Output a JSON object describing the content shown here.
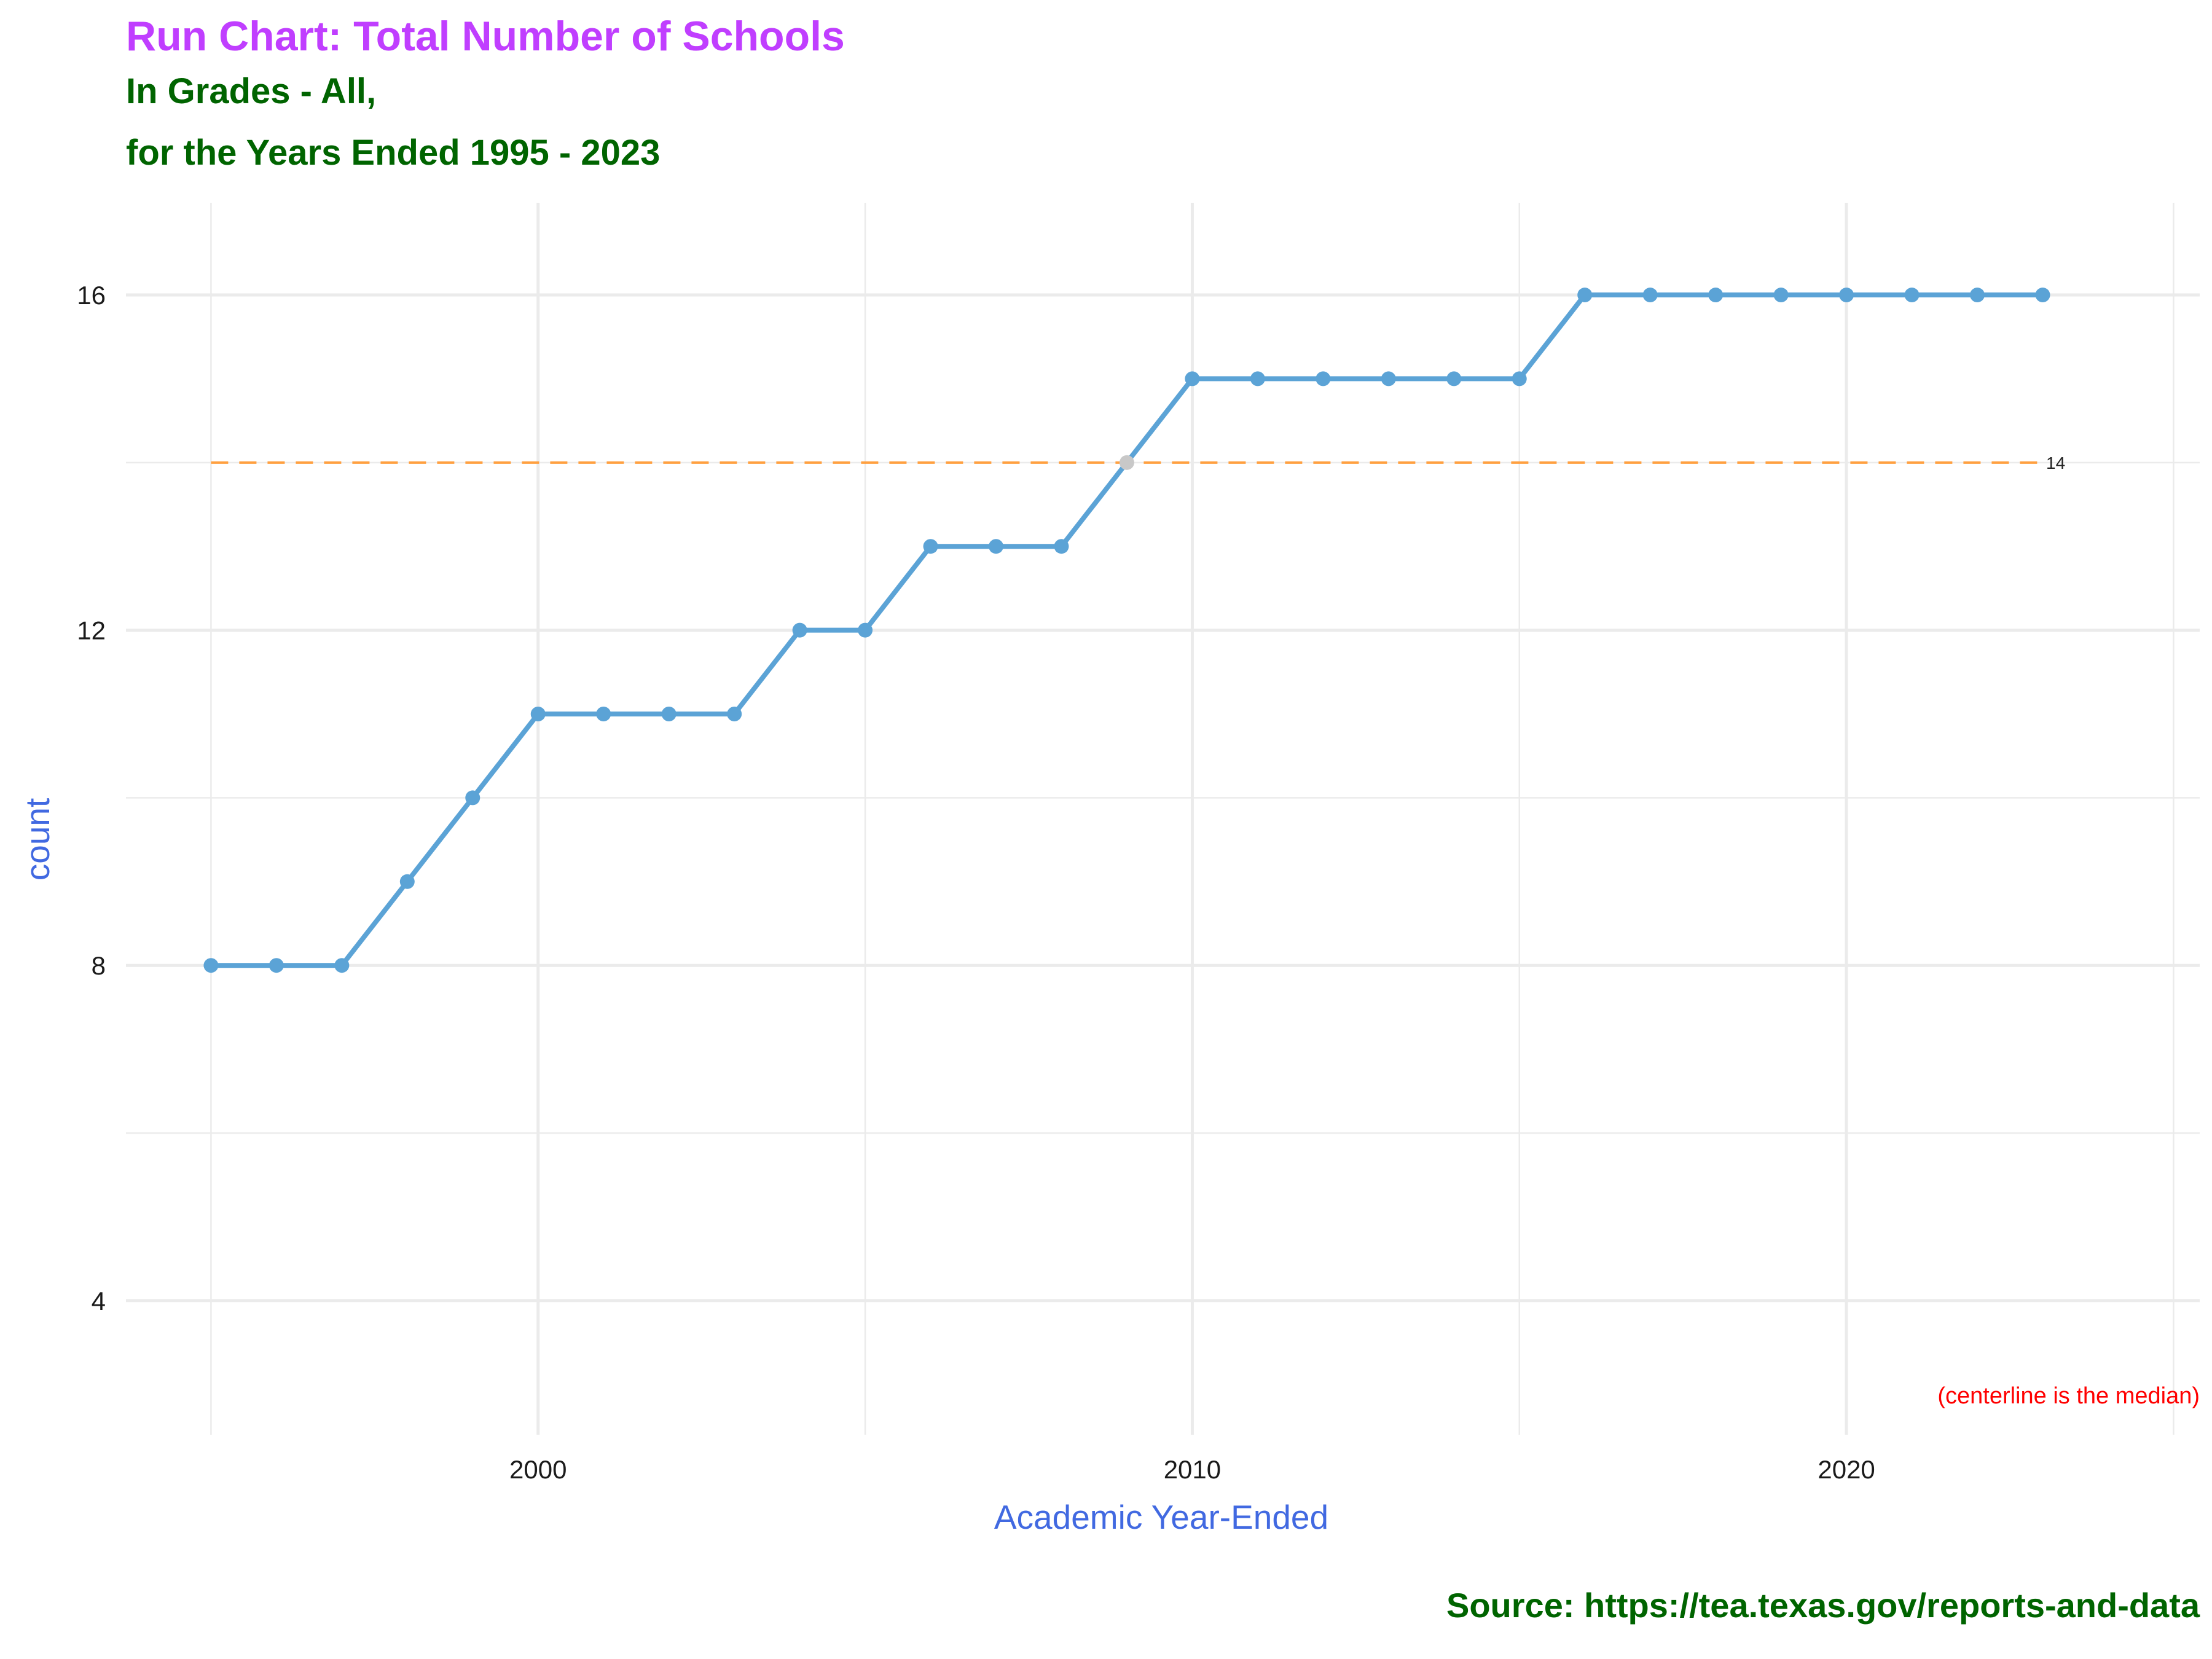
{
  "colors": {
    "title": "#C03EFF",
    "subtitle": "#006400",
    "axis_title": "#4169E1",
    "line": "#5BA3D6",
    "point": "#5BA3D6",
    "highlight_point": "#C8C8C8",
    "median_line": "#FFA040",
    "note": "#FF0000",
    "caption": "#006400",
    "grid": "#EBEBEB"
  },
  "chart_data": {
    "type": "line",
    "title": "Run Chart: Total Number of Schools",
    "subtitle_lines": [
      "In Grades - All,",
      "for the Years Ended 1995 - 2023"
    ],
    "xlabel": "Academic Year-Ended",
    "ylabel": "count",
    "x": [
      1995,
      1996,
      1997,
      1998,
      1999,
      2000,
      2001,
      2002,
      2003,
      2004,
      2005,
      2006,
      2007,
      2008,
      2009,
      2010,
      2011,
      2012,
      2013,
      2014,
      2015,
      2016,
      2017,
      2018,
      2019,
      2020,
      2021,
      2022,
      2023
    ],
    "values": [
      8,
      8,
      8,
      9,
      10,
      11,
      11,
      11,
      11,
      12,
      12,
      13,
      13,
      13,
      14,
      15,
      15,
      15,
      15,
      15,
      15,
      16,
      16,
      16,
      16,
      16,
      16,
      16,
      16
    ],
    "highlight_points": [
      2009
    ],
    "xlim": [
      1993.7,
      2025.4
    ],
    "ylim": [
      2.4,
      17.1
    ],
    "x_major_ticks": [
      2000,
      2010,
      2020
    ],
    "x_minor_ticks": [
      1995,
      2005,
      2015,
      2025
    ],
    "y_major_ticks": [
      4,
      8,
      12,
      16
    ],
    "y_minor_ticks": [
      6,
      10,
      14
    ],
    "x_tick_labels": [
      "2000",
      "2010",
      "2020"
    ],
    "y_tick_labels": [
      "4",
      "8",
      "12",
      "16"
    ],
    "median": 14,
    "median_label": "14",
    "note": "(centerline is the median)",
    "caption": "Source:  https://tea.texas.gov/reports-and-data",
    "grid": true,
    "legend": "none"
  }
}
